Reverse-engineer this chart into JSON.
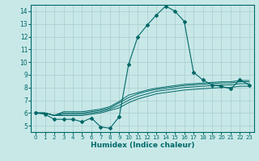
{
  "xlabel": "Humidex (Indice chaleur)",
  "xlim": [
    -0.5,
    23.5
  ],
  "ylim": [
    4.5,
    14.5
  ],
  "xticks": [
    0,
    1,
    2,
    3,
    4,
    5,
    6,
    7,
    8,
    9,
    10,
    11,
    12,
    13,
    14,
    15,
    16,
    17,
    18,
    19,
    20,
    21,
    22,
    23
  ],
  "yticks": [
    5,
    6,
    7,
    8,
    9,
    10,
    11,
    12,
    13,
    14
  ],
  "background_color": "#c8e8e8",
  "grid_color": "#aacccc",
  "line_color": "#006868",
  "main_line": [
    6.0,
    5.9,
    5.5,
    5.5,
    5.5,
    5.3,
    5.6,
    4.9,
    4.8,
    5.7,
    9.8,
    12.0,
    12.9,
    13.7,
    14.4,
    14.0,
    13.2,
    9.2,
    8.6,
    8.2,
    8.1,
    7.9,
    8.6,
    8.2
  ],
  "trend_lines": [
    [
      6.0,
      6.0,
      5.8,
      5.8,
      5.8,
      5.8,
      5.9,
      6.0,
      6.2,
      6.4,
      6.8,
      7.1,
      7.3,
      7.5,
      7.6,
      7.7,
      7.8,
      7.85,
      7.9,
      7.95,
      8.0,
      8.0,
      8.1,
      8.1
    ],
    [
      6.0,
      6.0,
      5.8,
      5.9,
      5.9,
      5.9,
      6.0,
      6.1,
      6.3,
      6.6,
      7.0,
      7.3,
      7.5,
      7.7,
      7.8,
      7.9,
      8.0,
      8.05,
      8.1,
      8.15,
      8.2,
      8.2,
      8.3,
      8.3
    ],
    [
      6.0,
      6.0,
      5.8,
      6.0,
      6.0,
      6.0,
      6.1,
      6.2,
      6.4,
      6.8,
      7.2,
      7.5,
      7.7,
      7.85,
      7.95,
      8.05,
      8.15,
      8.2,
      8.25,
      8.3,
      8.35,
      8.35,
      8.45,
      8.45
    ],
    [
      6.0,
      6.0,
      5.8,
      6.1,
      6.1,
      6.1,
      6.2,
      6.3,
      6.5,
      6.9,
      7.4,
      7.6,
      7.8,
      7.95,
      8.05,
      8.15,
      8.25,
      8.3,
      8.35,
      8.4,
      8.45,
      8.45,
      8.55,
      8.55
    ]
  ]
}
